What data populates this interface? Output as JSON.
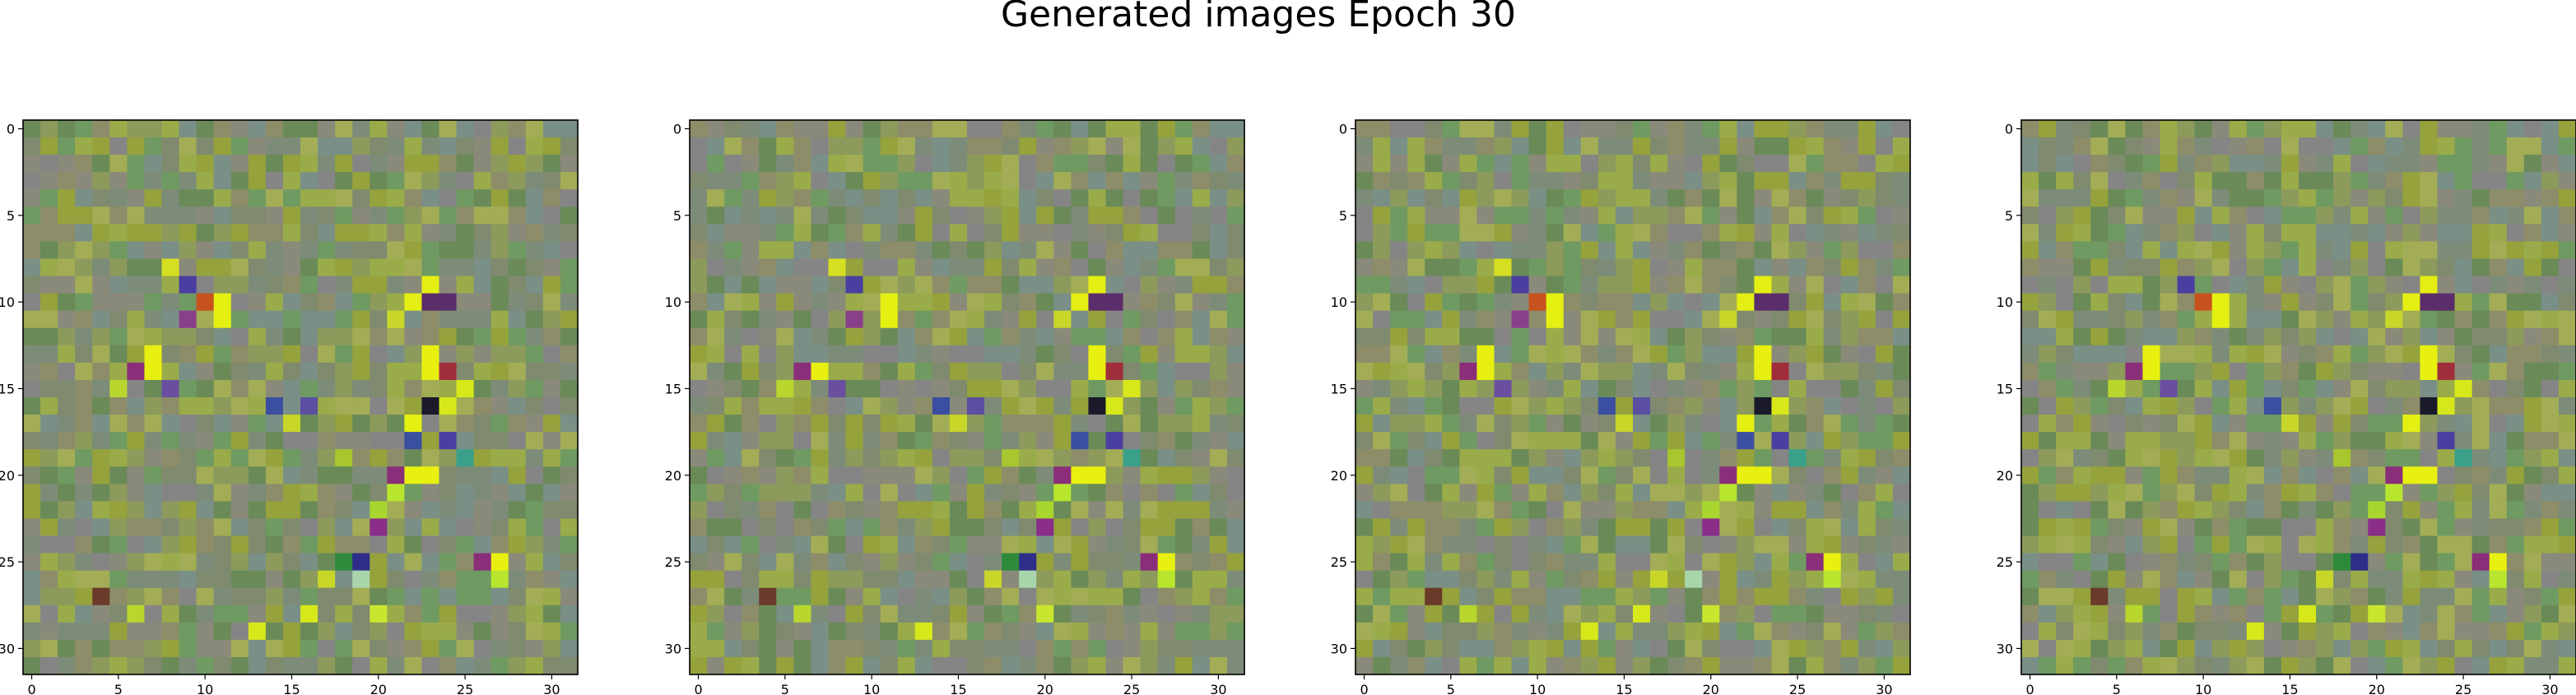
{
  "title": "Generated images Epoch 30",
  "chart_data": {
    "type": "heatmap",
    "title": "Generated images Epoch 30",
    "grid_size": 32,
    "ticks": [
      0,
      5,
      10,
      15,
      20,
      25,
      30
    ],
    "xlim": [
      -0.5,
      31.5
    ],
    "ylim": [
      31.5,
      -0.5
    ],
    "panels": 4,
    "base_color": "#8a8a7a",
    "palette": [
      "#8a8a7a",
      "#7f8a6e",
      "#8c9a5c",
      "#9aab4a",
      "#6f9a62",
      "#7a8f86",
      "#858585",
      "#96a23c",
      "#6a8a58",
      "#8d8d6a",
      "#a3ad55",
      "#7d8c78"
    ],
    "bright_pixels": [
      {
        "x": 10,
        "y": 10,
        "color": "#c8521e"
      },
      {
        "x": 11,
        "y": 10,
        "color": "#e4f011"
      },
      {
        "x": 11,
        "y": 11,
        "color": "#e4f011"
      },
      {
        "x": 9,
        "y": 9,
        "color": "#4a3fa0"
      },
      {
        "x": 8,
        "y": 8,
        "color": "#d6de22"
      },
      {
        "x": 9,
        "y": 11,
        "color": "#8a3f8a"
      },
      {
        "x": 7,
        "y": 13,
        "color": "#e8f010"
      },
      {
        "x": 7,
        "y": 14,
        "color": "#e8f010"
      },
      {
        "x": 6,
        "y": 14,
        "color": "#8a2e7a"
      },
      {
        "x": 5,
        "y": 15,
        "color": "#b8d62e"
      },
      {
        "x": 8,
        "y": 15,
        "color": "#6a4fa0"
      },
      {
        "x": 23,
        "y": 9,
        "color": "#e4ee12"
      },
      {
        "x": 22,
        "y": 10,
        "color": "#e4ee12"
      },
      {
        "x": 23,
        "y": 10,
        "color": "#5a2e6a"
      },
      {
        "x": 24,
        "y": 10,
        "color": "#5a2e6a"
      },
      {
        "x": 21,
        "y": 11,
        "color": "#c8d62a"
      },
      {
        "x": 23,
        "y": 13,
        "color": "#e8f010"
      },
      {
        "x": 23,
        "y": 14,
        "color": "#e8f010"
      },
      {
        "x": 24,
        "y": 14,
        "color": "#a02e3a"
      },
      {
        "x": 25,
        "y": 15,
        "color": "#d6e81a"
      },
      {
        "x": 23,
        "y": 16,
        "color": "#1a1a2a"
      },
      {
        "x": 24,
        "y": 16,
        "color": "#d6e81a"
      },
      {
        "x": 22,
        "y": 17,
        "color": "#e4f011"
      },
      {
        "x": 22,
        "y": 18,
        "color": "#3a4fa0"
      },
      {
        "x": 24,
        "y": 18,
        "color": "#4a3fa0"
      },
      {
        "x": 25,
        "y": 19,
        "color": "#3aa08a"
      },
      {
        "x": 21,
        "y": 20,
        "color": "#8a2e7a"
      },
      {
        "x": 22,
        "y": 20,
        "color": "#e8f010"
      },
      {
        "x": 23,
        "y": 20,
        "color": "#e8f010"
      },
      {
        "x": 21,
        "y": 21,
        "color": "#b8e62e"
      },
      {
        "x": 20,
        "y": 22,
        "color": "#a8d62e"
      },
      {
        "x": 20,
        "y": 23,
        "color": "#8a2e8a"
      },
      {
        "x": 16,
        "y": 16,
        "color": "#5a4fa0"
      },
      {
        "x": 15,
        "y": 17,
        "color": "#c8d62a"
      },
      {
        "x": 18,
        "y": 19,
        "color": "#a8c62e"
      },
      {
        "x": 14,
        "y": 16,
        "color": "#3a4fa0"
      },
      {
        "x": 18,
        "y": 25,
        "color": "#2e8a3a"
      },
      {
        "x": 19,
        "y": 25,
        "color": "#2e2e8a"
      },
      {
        "x": 19,
        "y": 26,
        "color": "#a8d6aa"
      },
      {
        "x": 17,
        "y": 26,
        "color": "#c8d62a"
      },
      {
        "x": 26,
        "y": 25,
        "color": "#8a2e7a"
      },
      {
        "x": 27,
        "y": 25,
        "color": "#e8f010"
      },
      {
        "x": 27,
        "y": 26,
        "color": "#b8e62e"
      },
      {
        "x": 16,
        "y": 28,
        "color": "#d6e81a"
      },
      {
        "x": 20,
        "y": 28,
        "color": "#c8e62e"
      },
      {
        "x": 13,
        "y": 29,
        "color": "#d6e81a"
      },
      {
        "x": 4,
        "y": 27,
        "color": "#6a3a2a"
      },
      {
        "x": 6,
        "y": 28,
        "color": "#b8d62e"
      }
    ]
  }
}
